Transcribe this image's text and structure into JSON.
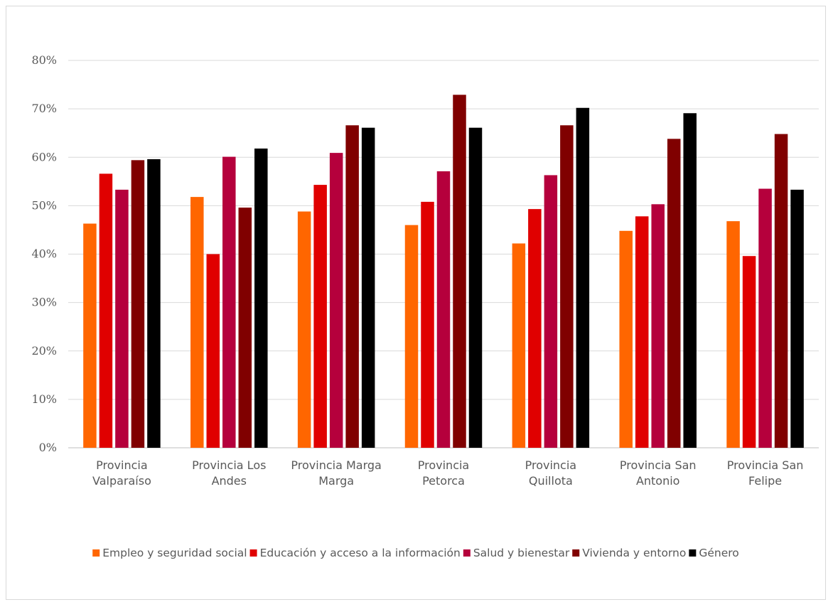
{
  "chart_data": {
    "type": "bar",
    "title": "",
    "xlabel": "",
    "ylabel": "",
    "ylim": [
      0,
      80
    ],
    "y_tick_step": 10,
    "y_tick_suffix": "%",
    "grid": true,
    "legend_position": "bottom",
    "categories": [
      [
        "Provincia",
        "Valparaíso"
      ],
      [
        "Provincia Los",
        "Andes"
      ],
      [
        "Provincia Marga",
        "Marga"
      ],
      [
        "Provincia",
        "Petorca"
      ],
      [
        "Provincia",
        "Quillota"
      ],
      [
        "Provincia San",
        "Antonio"
      ],
      [
        "Provincia San",
        "Felipe"
      ]
    ],
    "series": [
      {
        "name": "Empleo y seguridad social",
        "color": "#ff6600",
        "values": [
          46.3,
          51.8,
          48.8,
          46.0,
          42.2,
          44.8,
          46.8
        ]
      },
      {
        "name": "Educación y acceso a la información",
        "color": "#e00000",
        "values": [
          56.6,
          40.0,
          54.3,
          50.8,
          49.3,
          47.8,
          39.6
        ]
      },
      {
        "name": "Salud y bienestar",
        "color": "#b5003c",
        "values": [
          53.3,
          60.1,
          60.9,
          57.1,
          56.3,
          50.3,
          53.5
        ]
      },
      {
        "name": "Vivienda y entorno",
        "color": "#800000",
        "values": [
          59.4,
          49.6,
          66.6,
          72.9,
          66.6,
          63.8,
          64.8
        ]
      },
      {
        "name": "Género",
        "color": "#000000",
        "values": [
          59.6,
          61.8,
          66.1,
          66.1,
          70.2,
          69.1,
          53.3
        ]
      }
    ]
  }
}
